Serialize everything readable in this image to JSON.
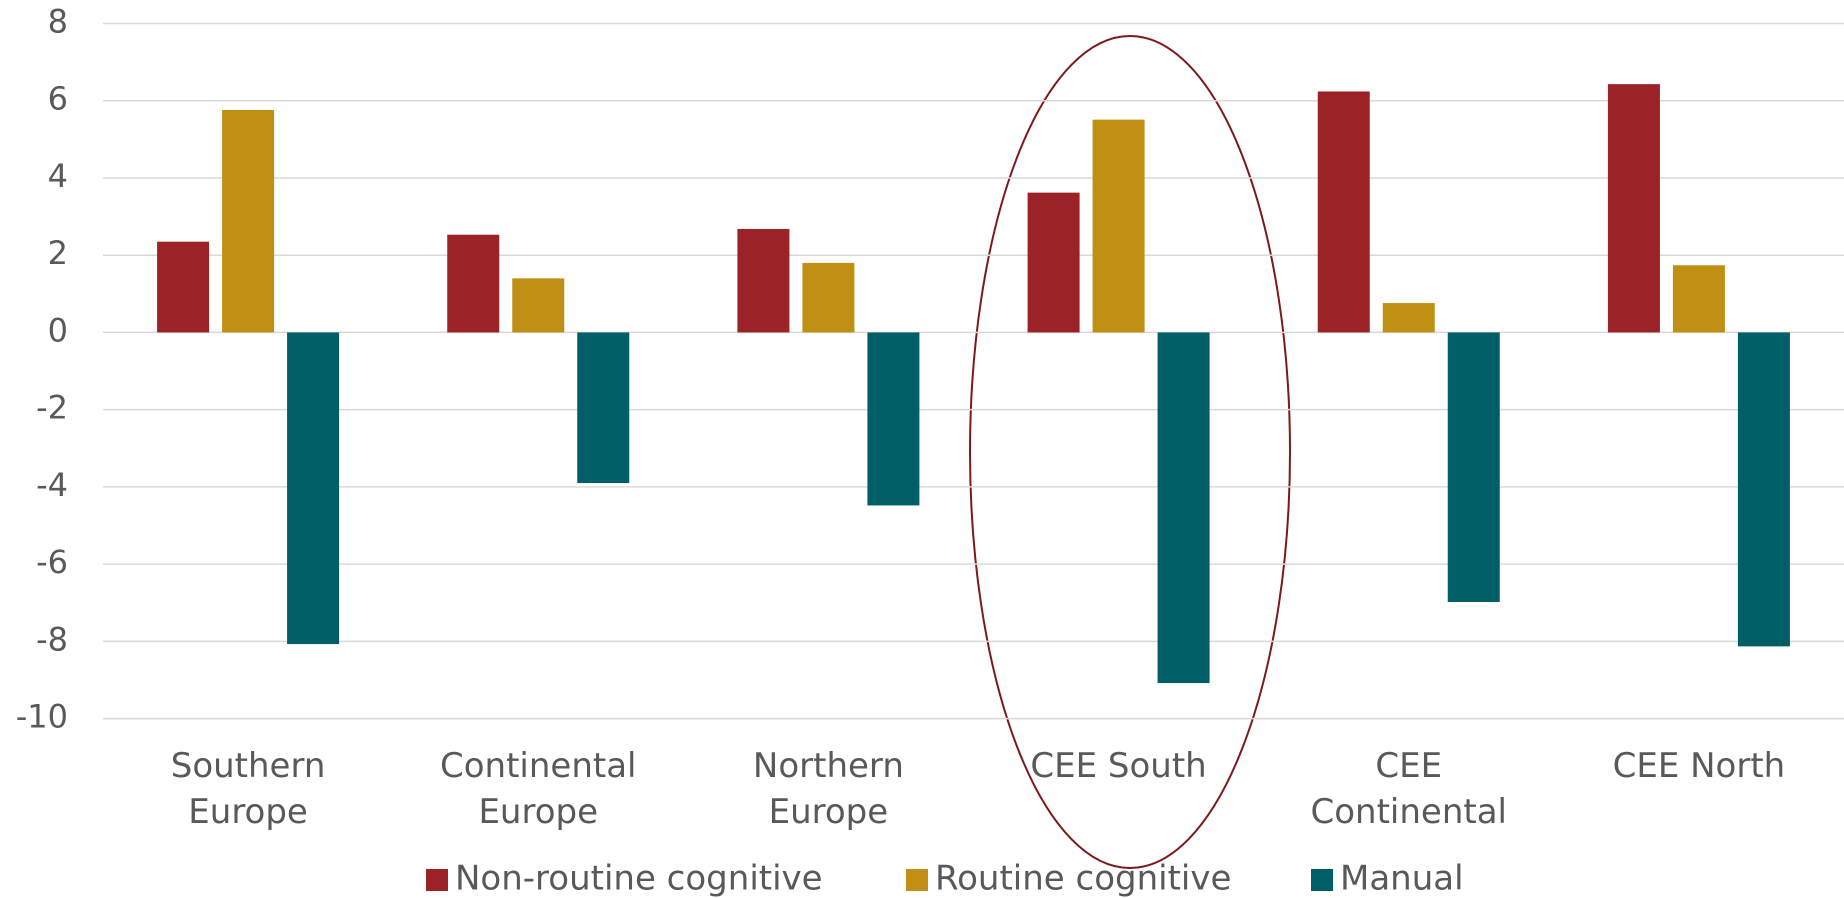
{
  "chart_data": {
    "type": "bar",
    "categories": [
      "Southern Europe",
      "Continental Europe",
      "Northern Europe",
      "CEE South",
      "CEE Continental",
      "CEE North"
    ],
    "series": [
      {
        "name": "Non-routine cognitive",
        "color": "#9b2226",
        "values": [
          2.35,
          2.53,
          2.68,
          3.62,
          6.24,
          6.43
        ]
      },
      {
        "name": "Routine cognitive",
        "color": "#c09015",
        "values": [
          5.76,
          1.4,
          1.8,
          5.51,
          0.76,
          1.74
        ]
      },
      {
        "name": "Manual",
        "color": "#005f66",
        "values": [
          -8.07,
          -3.9,
          -4.48,
          -9.08,
          -6.98,
          -8.13
        ]
      }
    ],
    "ylim": [
      -10,
      8
    ],
    "yticks": [
      -10,
      -8,
      -6,
      -4,
      -2,
      0,
      2,
      4,
      6,
      8
    ],
    "grid": true,
    "legend": "bottom"
  }
}
